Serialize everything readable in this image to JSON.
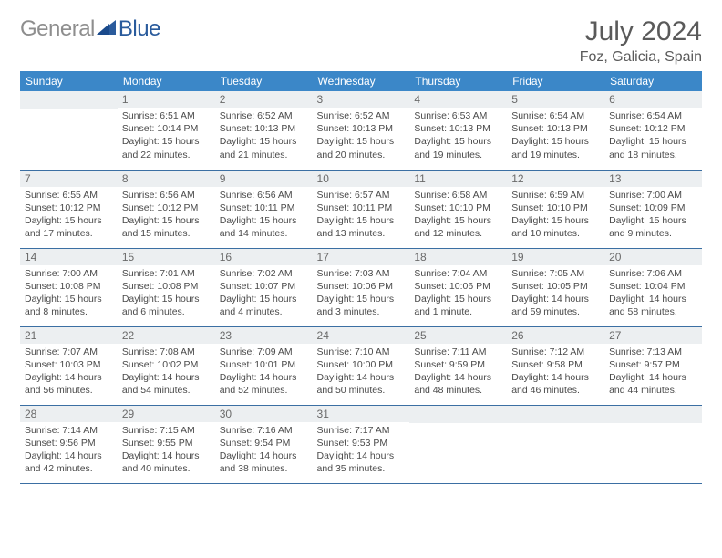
{
  "brand": {
    "gray": "General",
    "blue": "Blue"
  },
  "title": "July 2024",
  "location": "Foz, Galicia, Spain",
  "colors": {
    "header_bg": "#3b87c8",
    "header_text": "#ffffff",
    "daynum_bg": "#eceff1",
    "row_border": "#3b6fa3",
    "body_text": "#4a4a4a",
    "title_text": "#5a5a5a"
  },
  "day_names": [
    "Sunday",
    "Monday",
    "Tuesday",
    "Wednesday",
    "Thursday",
    "Friday",
    "Saturday"
  ],
  "weeks": [
    [
      null,
      {
        "n": "1",
        "sr": "Sunrise: 6:51 AM",
        "ss": "Sunset: 10:14 PM",
        "d1": "Daylight: 15 hours",
        "d2": "and 22 minutes."
      },
      {
        "n": "2",
        "sr": "Sunrise: 6:52 AM",
        "ss": "Sunset: 10:13 PM",
        "d1": "Daylight: 15 hours",
        "d2": "and 21 minutes."
      },
      {
        "n": "3",
        "sr": "Sunrise: 6:52 AM",
        "ss": "Sunset: 10:13 PM",
        "d1": "Daylight: 15 hours",
        "d2": "and 20 minutes."
      },
      {
        "n": "4",
        "sr": "Sunrise: 6:53 AM",
        "ss": "Sunset: 10:13 PM",
        "d1": "Daylight: 15 hours",
        "d2": "and 19 minutes."
      },
      {
        "n": "5",
        "sr": "Sunrise: 6:54 AM",
        "ss": "Sunset: 10:13 PM",
        "d1": "Daylight: 15 hours",
        "d2": "and 19 minutes."
      },
      {
        "n": "6",
        "sr": "Sunrise: 6:54 AM",
        "ss": "Sunset: 10:12 PM",
        "d1": "Daylight: 15 hours",
        "d2": "and 18 minutes."
      }
    ],
    [
      {
        "n": "7",
        "sr": "Sunrise: 6:55 AM",
        "ss": "Sunset: 10:12 PM",
        "d1": "Daylight: 15 hours",
        "d2": "and 17 minutes."
      },
      {
        "n": "8",
        "sr": "Sunrise: 6:56 AM",
        "ss": "Sunset: 10:12 PM",
        "d1": "Daylight: 15 hours",
        "d2": "and 15 minutes."
      },
      {
        "n": "9",
        "sr": "Sunrise: 6:56 AM",
        "ss": "Sunset: 10:11 PM",
        "d1": "Daylight: 15 hours",
        "d2": "and 14 minutes."
      },
      {
        "n": "10",
        "sr": "Sunrise: 6:57 AM",
        "ss": "Sunset: 10:11 PM",
        "d1": "Daylight: 15 hours",
        "d2": "and 13 minutes."
      },
      {
        "n": "11",
        "sr": "Sunrise: 6:58 AM",
        "ss": "Sunset: 10:10 PM",
        "d1": "Daylight: 15 hours",
        "d2": "and 12 minutes."
      },
      {
        "n": "12",
        "sr": "Sunrise: 6:59 AM",
        "ss": "Sunset: 10:10 PM",
        "d1": "Daylight: 15 hours",
        "d2": "and 10 minutes."
      },
      {
        "n": "13",
        "sr": "Sunrise: 7:00 AM",
        "ss": "Sunset: 10:09 PM",
        "d1": "Daylight: 15 hours",
        "d2": "and 9 minutes."
      }
    ],
    [
      {
        "n": "14",
        "sr": "Sunrise: 7:00 AM",
        "ss": "Sunset: 10:08 PM",
        "d1": "Daylight: 15 hours",
        "d2": "and 8 minutes."
      },
      {
        "n": "15",
        "sr": "Sunrise: 7:01 AM",
        "ss": "Sunset: 10:08 PM",
        "d1": "Daylight: 15 hours",
        "d2": "and 6 minutes."
      },
      {
        "n": "16",
        "sr": "Sunrise: 7:02 AM",
        "ss": "Sunset: 10:07 PM",
        "d1": "Daylight: 15 hours",
        "d2": "and 4 minutes."
      },
      {
        "n": "17",
        "sr": "Sunrise: 7:03 AM",
        "ss": "Sunset: 10:06 PM",
        "d1": "Daylight: 15 hours",
        "d2": "and 3 minutes."
      },
      {
        "n": "18",
        "sr": "Sunrise: 7:04 AM",
        "ss": "Sunset: 10:06 PM",
        "d1": "Daylight: 15 hours",
        "d2": "and 1 minute."
      },
      {
        "n": "19",
        "sr": "Sunrise: 7:05 AM",
        "ss": "Sunset: 10:05 PM",
        "d1": "Daylight: 14 hours",
        "d2": "and 59 minutes."
      },
      {
        "n": "20",
        "sr": "Sunrise: 7:06 AM",
        "ss": "Sunset: 10:04 PM",
        "d1": "Daylight: 14 hours",
        "d2": "and 58 minutes."
      }
    ],
    [
      {
        "n": "21",
        "sr": "Sunrise: 7:07 AM",
        "ss": "Sunset: 10:03 PM",
        "d1": "Daylight: 14 hours",
        "d2": "and 56 minutes."
      },
      {
        "n": "22",
        "sr": "Sunrise: 7:08 AM",
        "ss": "Sunset: 10:02 PM",
        "d1": "Daylight: 14 hours",
        "d2": "and 54 minutes."
      },
      {
        "n": "23",
        "sr": "Sunrise: 7:09 AM",
        "ss": "Sunset: 10:01 PM",
        "d1": "Daylight: 14 hours",
        "d2": "and 52 minutes."
      },
      {
        "n": "24",
        "sr": "Sunrise: 7:10 AM",
        "ss": "Sunset: 10:00 PM",
        "d1": "Daylight: 14 hours",
        "d2": "and 50 minutes."
      },
      {
        "n": "25",
        "sr": "Sunrise: 7:11 AM",
        "ss": "Sunset: 9:59 PM",
        "d1": "Daylight: 14 hours",
        "d2": "and 48 minutes."
      },
      {
        "n": "26",
        "sr": "Sunrise: 7:12 AM",
        "ss": "Sunset: 9:58 PM",
        "d1": "Daylight: 14 hours",
        "d2": "and 46 minutes."
      },
      {
        "n": "27",
        "sr": "Sunrise: 7:13 AM",
        "ss": "Sunset: 9:57 PM",
        "d1": "Daylight: 14 hours",
        "d2": "and 44 minutes."
      }
    ],
    [
      {
        "n": "28",
        "sr": "Sunrise: 7:14 AM",
        "ss": "Sunset: 9:56 PM",
        "d1": "Daylight: 14 hours",
        "d2": "and 42 minutes."
      },
      {
        "n": "29",
        "sr": "Sunrise: 7:15 AM",
        "ss": "Sunset: 9:55 PM",
        "d1": "Daylight: 14 hours",
        "d2": "and 40 minutes."
      },
      {
        "n": "30",
        "sr": "Sunrise: 7:16 AM",
        "ss": "Sunset: 9:54 PM",
        "d1": "Daylight: 14 hours",
        "d2": "and 38 minutes."
      },
      {
        "n": "31",
        "sr": "Sunrise: 7:17 AM",
        "ss": "Sunset: 9:53 PM",
        "d1": "Daylight: 14 hours",
        "d2": "and 35 minutes."
      },
      null,
      null,
      null
    ]
  ]
}
